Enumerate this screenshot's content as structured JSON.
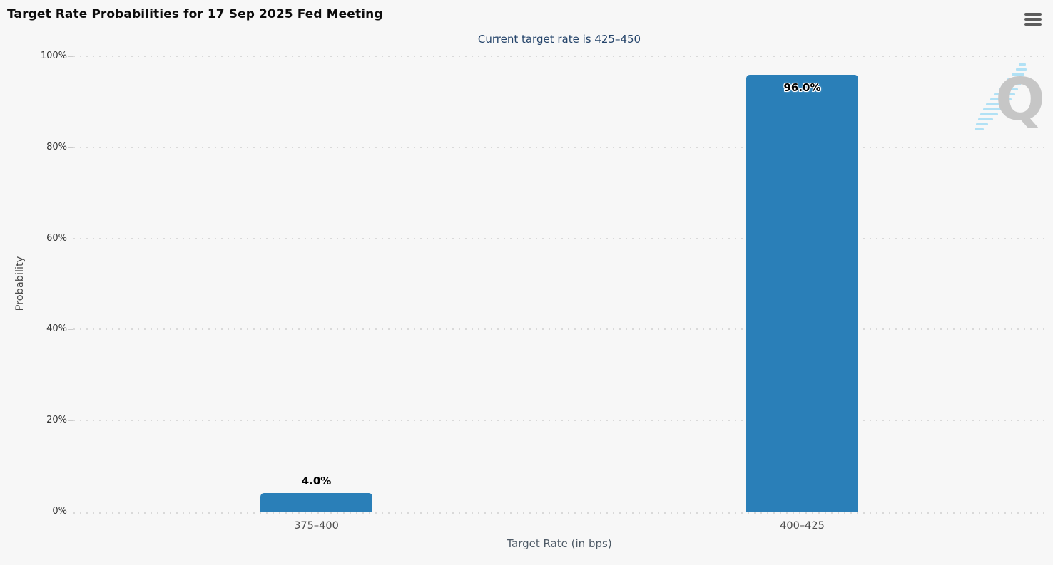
{
  "header": {
    "menu_icon": "hamburger-menu-icon"
  },
  "watermark": {
    "letter": "Q"
  },
  "colors": {
    "background": "#f7f7f7",
    "bar": "#2a7fb8",
    "subtitle_text": "#26456b",
    "gridline": "#d9d9d9",
    "axis_line": "#c6c6c6",
    "title_text": "#0c0c0c",
    "watermark_q": "#c4c4c4",
    "watermark_stripes": "#aee0f5"
  },
  "chart_data": {
    "type": "bar",
    "title": "Target Rate Probabilities for 17 Sep 2025 Fed Meeting",
    "subtitle": "Current target rate is 425–450",
    "categories": [
      "375–400",
      "400–425"
    ],
    "values": [
      4.0,
      96.0
    ],
    "value_labels": [
      "4.0%",
      "96.0%"
    ],
    "series": [
      {
        "name": "Probability",
        "values": [
          4.0,
          96.0
        ]
      }
    ],
    "xlabel": "Target Rate (in bps)",
    "ylabel": "Probability",
    "ylim": [
      0,
      100
    ],
    "yticks": [
      0,
      20,
      40,
      60,
      80,
      100
    ],
    "ytick_labels": [
      "0%",
      "20%",
      "40%",
      "60%",
      "80%",
      "100%"
    ],
    "legend": "none",
    "grid": "horizontal-dotted"
  }
}
